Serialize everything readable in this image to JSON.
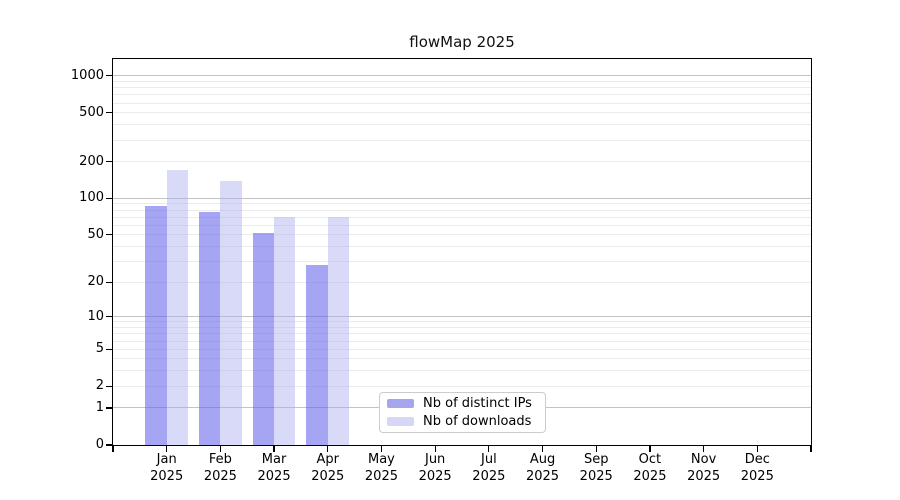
{
  "chart_data": {
    "type": "bar",
    "title": "flowMap 2025",
    "categories": [
      "Jan",
      "Feb",
      "Mar",
      "Apr",
      "May",
      "Jun",
      "Jul",
      "Aug",
      "Sep",
      "Oct",
      "Nov",
      "Dec"
    ],
    "x_year": "2025",
    "series": [
      {
        "name": "Nb of distinct IPs",
        "values": [
          86,
          78,
          52,
          28,
          0,
          0,
          0,
          0,
          0,
          0,
          0,
          0
        ],
        "bar_color": "rgba(100,100,235,0.58)",
        "legend_color": "#a5a5f0"
      },
      {
        "name": "Nb of downloads",
        "values": [
          172,
          138,
          70,
          70,
          0,
          0,
          0,
          0,
          0,
          0,
          0,
          0
        ],
        "bar_color": "rgba(170,170,240,0.45)",
        "legend_color": "#d6d6f7"
      }
    ],
    "xlabel": "",
    "ylabel": "",
    "yscale": "log1p",
    "ylim": [
      0,
      1370
    ],
    "y_ticks": [
      1000,
      500,
      200,
      100,
      50,
      20,
      10,
      5,
      2,
      1,
      0
    ],
    "y_major_gridlines": [
      1,
      10,
      100,
      1000
    ],
    "grid": true,
    "legend_position": "inside-bottom-center",
    "colors": {
      "major_grid": "#c3c3c3",
      "minor_grid": "#ebebeb",
      "axis": "#000000",
      "background": "#ffffff"
    }
  }
}
